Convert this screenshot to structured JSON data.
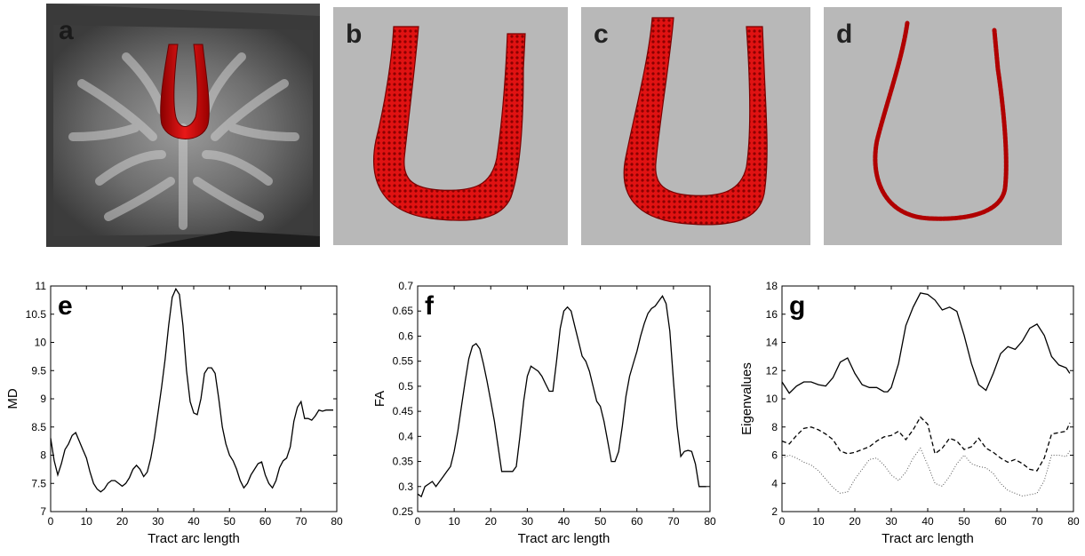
{
  "panels": {
    "a": {
      "letter": "a"
    },
    "b": {
      "letter": "b"
    },
    "c": {
      "letter": "c"
    },
    "d": {
      "letter": "d"
    }
  },
  "colors": {
    "tract": "#d81010",
    "tract_dark": "#7a0000",
    "panel_bg": "#b8b8b8",
    "brain_bg": "#4a4a4a"
  },
  "chart_data": [
    {
      "id": "e",
      "letter": "e",
      "type": "line",
      "xlabel": "Tract arc length",
      "ylabel": "MD",
      "xlim": [
        0,
        80
      ],
      "ylim": [
        7,
        11
      ],
      "xticks": [
        "0",
        "10",
        "20",
        "30",
        "40",
        "50",
        "60",
        "70",
        "80"
      ],
      "yticks": [
        "7",
        "7.5",
        "8",
        "8.5",
        "9",
        "9.5",
        "10",
        "10.5",
        "11"
      ],
      "series": [
        {
          "style": "solid",
          "x": [
            0,
            1,
            2,
            3,
            4,
            5,
            6,
            7,
            8,
            9,
            10,
            11,
            12,
            13,
            14,
            15,
            16,
            17,
            18,
            19,
            20,
            21,
            22,
            23,
            24,
            25,
            26,
            27,
            28,
            29,
            30,
            31,
            32,
            33,
            34,
            35,
            36,
            37,
            38,
            39,
            40,
            41,
            42,
            43,
            44,
            45,
            46,
            47,
            48,
            49,
            50,
            51,
            52,
            53,
            54,
            55,
            56,
            57,
            58,
            59,
            60,
            61,
            62,
            63,
            64,
            65,
            66,
            67,
            68,
            69,
            70,
            71,
            72,
            73,
            74,
            75,
            76,
            77,
            78,
            79
          ],
          "y": [
            8.3,
            7.9,
            7.65,
            7.85,
            8.1,
            8.2,
            8.35,
            8.4,
            8.25,
            8.1,
            7.95,
            7.7,
            7.5,
            7.4,
            7.35,
            7.4,
            7.5,
            7.55,
            7.55,
            7.5,
            7.45,
            7.5,
            7.6,
            7.75,
            7.82,
            7.75,
            7.62,
            7.7,
            7.95,
            8.3,
            8.75,
            9.2,
            9.7,
            10.3,
            10.8,
            10.95,
            10.85,
            10.3,
            9.5,
            8.95,
            8.75,
            8.72,
            9.0,
            9.45,
            9.55,
            9.55,
            9.45,
            9.0,
            8.5,
            8.2,
            8.0,
            7.9,
            7.75,
            7.55,
            7.42,
            7.5,
            7.65,
            7.75,
            7.85,
            7.88,
            7.65,
            7.5,
            7.42,
            7.55,
            7.78,
            7.9,
            7.95,
            8.15,
            8.6,
            8.85,
            8.95,
            8.65,
            8.65,
            8.62,
            8.7,
            8.8,
            8.78,
            8.8,
            8.8,
            8.8
          ]
        }
      ]
    },
    {
      "id": "f",
      "letter": "f",
      "type": "line",
      "xlabel": "Tract arc length",
      "ylabel": "FA",
      "xlim": [
        0,
        80
      ],
      "ylim": [
        0.25,
        0.7
      ],
      "xticks": [
        "0",
        "10",
        "20",
        "30",
        "40",
        "50",
        "60",
        "70",
        "80"
      ],
      "yticks": [
        "0.25",
        "0.3",
        "0.35",
        "0.4",
        "0.45",
        "0.5",
        "0.55",
        "0.6",
        "0.65",
        "0.7"
      ],
      "series": [
        {
          "style": "solid",
          "x": [
            0,
            1,
            2,
            3,
            4,
            5,
            6,
            7,
            8,
            9,
            10,
            11,
            12,
            13,
            14,
            15,
            16,
            17,
            18,
            19,
            20,
            21,
            22,
            23,
            24,
            25,
            26,
            27,
            28,
            29,
            30,
            31,
            32,
            33,
            34,
            35,
            36,
            37,
            38,
            39,
            40,
            41,
            42,
            43,
            44,
            45,
            46,
            47,
            48,
            49,
            50,
            51,
            52,
            53,
            54,
            55,
            56,
            57,
            58,
            59,
            60,
            61,
            62,
            63,
            64,
            65,
            66,
            67,
            68,
            69,
            70,
            71,
            72,
            73,
            74,
            75,
            76,
            77,
            78,
            79
          ],
          "y": [
            0.285,
            0.28,
            0.3,
            0.305,
            0.31,
            0.3,
            0.31,
            0.32,
            0.33,
            0.34,
            0.37,
            0.41,
            0.46,
            0.51,
            0.555,
            0.58,
            0.585,
            0.575,
            0.545,
            0.51,
            0.47,
            0.43,
            0.38,
            0.33,
            0.33,
            0.33,
            0.33,
            0.34,
            0.4,
            0.47,
            0.52,
            0.54,
            0.535,
            0.53,
            0.52,
            0.505,
            0.49,
            0.49,
            0.55,
            0.615,
            0.65,
            0.658,
            0.65,
            0.62,
            0.59,
            0.56,
            0.55,
            0.53,
            0.5,
            0.47,
            0.46,
            0.43,
            0.39,
            0.35,
            0.35,
            0.37,
            0.42,
            0.48,
            0.52,
            0.545,
            0.57,
            0.6,
            0.625,
            0.645,
            0.655,
            0.66,
            0.67,
            0.68,
            0.665,
            0.61,
            0.51,
            0.42,
            0.36,
            0.37,
            0.372,
            0.37,
            0.345,
            0.3,
            0.3,
            0.3
          ]
        }
      ]
    },
    {
      "id": "g",
      "letter": "g",
      "type": "line",
      "xlabel": "Tract arc length",
      "ylabel": "Eigenvalues",
      "xlim": [
        0,
        80
      ],
      "ylim": [
        2,
        18
      ],
      "xticks": [
        "0",
        "10",
        "20",
        "30",
        "40",
        "50",
        "60",
        "70",
        "80"
      ],
      "yticks": [
        "2",
        "4",
        "6",
        "8",
        "10",
        "12",
        "14",
        "16",
        "18"
      ],
      "series": [
        {
          "style": "solid",
          "x": [
            0,
            2,
            4,
            6,
            8,
            10,
            12,
            14,
            16,
            18,
            20,
            22,
            24,
            26,
            28,
            29,
            30,
            32,
            34,
            36,
            38,
            40,
            42,
            44,
            46,
            48,
            50,
            52,
            54,
            56,
            58,
            60,
            62,
            64,
            66,
            68,
            70,
            72,
            74,
            76,
            78,
            79
          ],
          "y": [
            11.2,
            10.4,
            10.9,
            11.2,
            11.2,
            11.0,
            10.9,
            11.5,
            12.6,
            12.9,
            11.8,
            11.0,
            10.8,
            10.8,
            10.5,
            10.5,
            10.8,
            12.5,
            15.2,
            16.5,
            17.5,
            17.4,
            17.0,
            16.3,
            16.5,
            16.2,
            14.5,
            12.5,
            11.0,
            10.6,
            11.8,
            13.2,
            13.7,
            13.5,
            14.1,
            15.0,
            15.3,
            14.5,
            13.0,
            12.4,
            12.2,
            11.8
          ]
        },
        {
          "style": "dashed",
          "x": [
            0,
            2,
            4,
            6,
            8,
            10,
            12,
            14,
            16,
            18,
            20,
            22,
            24,
            26,
            28,
            30,
            32,
            34,
            36,
            38,
            40,
            42,
            44,
            46,
            48,
            50,
            52,
            54,
            56,
            58,
            60,
            62,
            64,
            66,
            68,
            70,
            72,
            74,
            76,
            78,
            79
          ],
          "y": [
            7.0,
            6.8,
            7.4,
            7.9,
            8.0,
            7.8,
            7.5,
            7.1,
            6.3,
            6.1,
            6.2,
            6.4,
            6.6,
            7.0,
            7.3,
            7.4,
            7.7,
            7.1,
            7.8,
            8.7,
            8.2,
            6.1,
            6.5,
            7.2,
            7.0,
            6.4,
            6.6,
            7.2,
            6.5,
            6.2,
            5.8,
            5.5,
            5.7,
            5.4,
            5.0,
            4.9,
            5.8,
            7.5,
            7.6,
            7.7,
            8.3
          ]
        },
        {
          "style": "dotted",
          "x": [
            0,
            2,
            4,
            6,
            8,
            10,
            12,
            14,
            16,
            18,
            20,
            22,
            24,
            26,
            28,
            30,
            32,
            34,
            36,
            38,
            40,
            42,
            44,
            46,
            48,
            50,
            52,
            54,
            56,
            58,
            60,
            62,
            64,
            66,
            68,
            70,
            72,
            74,
            76,
            78,
            79
          ],
          "y": [
            5.8,
            6.0,
            5.8,
            5.5,
            5.3,
            4.9,
            4.3,
            3.7,
            3.3,
            3.4,
            4.3,
            5.0,
            5.7,
            5.8,
            5.3,
            4.6,
            4.2,
            4.8,
            5.8,
            6.5,
            5.3,
            4.0,
            3.8,
            4.5,
            5.4,
            6.0,
            5.4,
            5.2,
            5.1,
            4.7,
            4.0,
            3.5,
            3.3,
            3.1,
            3.2,
            3.3,
            4.2,
            6.0,
            6.0,
            5.9,
            6.3
          ]
        }
      ]
    }
  ]
}
